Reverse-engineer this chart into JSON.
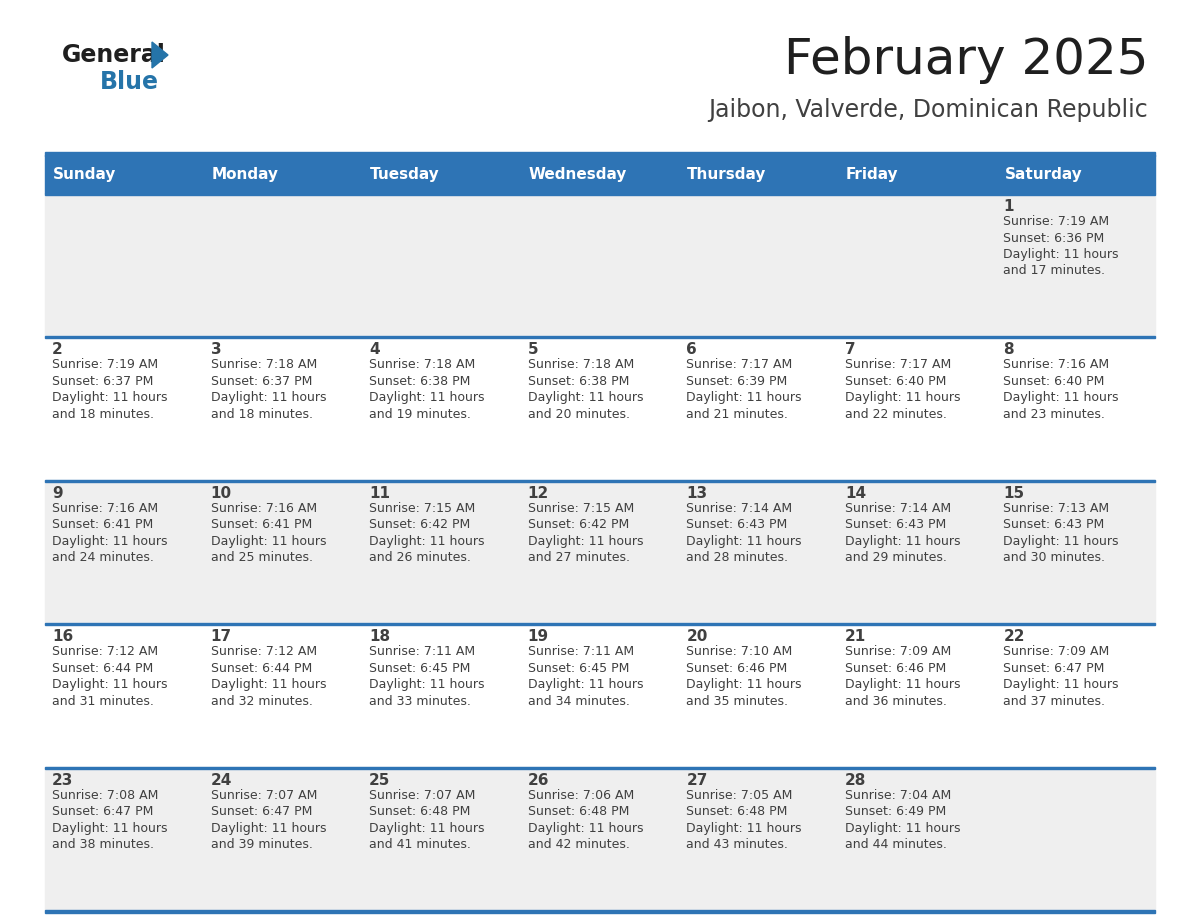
{
  "title": "February 2025",
  "subtitle": "Jaibon, Valverde, Dominican Republic",
  "days_of_week": [
    "Sunday",
    "Monday",
    "Tuesday",
    "Wednesday",
    "Thursday",
    "Friday",
    "Saturday"
  ],
  "header_bg": "#2E74B5",
  "header_text": "#FFFFFF",
  "cell_bg_white": "#FFFFFF",
  "cell_bg_gray": "#EFEFEF",
  "separator_color": "#2E74B5",
  "day_number_color": "#404040",
  "cell_text_color": "#404040",
  "title_color": "#1F1F1F",
  "subtitle_color": "#404040",
  "logo_general_color": "#1F1F1F",
  "logo_blue_color": "#2574A9",
  "weeks": [
    {
      "days": [
        {
          "day": null,
          "sunrise": null,
          "sunset": null,
          "daylight": null
        },
        {
          "day": null,
          "sunrise": null,
          "sunset": null,
          "daylight": null
        },
        {
          "day": null,
          "sunrise": null,
          "sunset": null,
          "daylight": null
        },
        {
          "day": null,
          "sunrise": null,
          "sunset": null,
          "daylight": null
        },
        {
          "day": null,
          "sunrise": null,
          "sunset": null,
          "daylight": null
        },
        {
          "day": null,
          "sunrise": null,
          "sunset": null,
          "daylight": null
        },
        {
          "day": 1,
          "sunrise": "7:19 AM",
          "sunset": "6:36 PM",
          "daylight": "11 hours and 17 minutes."
        }
      ]
    },
    {
      "days": [
        {
          "day": 2,
          "sunrise": "7:19 AM",
          "sunset": "6:37 PM",
          "daylight": "11 hours and 18 minutes."
        },
        {
          "day": 3,
          "sunrise": "7:18 AM",
          "sunset": "6:37 PM",
          "daylight": "11 hours and 18 minutes."
        },
        {
          "day": 4,
          "sunrise": "7:18 AM",
          "sunset": "6:38 PM",
          "daylight": "11 hours and 19 minutes."
        },
        {
          "day": 5,
          "sunrise": "7:18 AM",
          "sunset": "6:38 PM",
          "daylight": "11 hours and 20 minutes."
        },
        {
          "day": 6,
          "sunrise": "7:17 AM",
          "sunset": "6:39 PM",
          "daylight": "11 hours and 21 minutes."
        },
        {
          "day": 7,
          "sunrise": "7:17 AM",
          "sunset": "6:40 PM",
          "daylight": "11 hours and 22 minutes."
        },
        {
          "day": 8,
          "sunrise": "7:16 AM",
          "sunset": "6:40 PM",
          "daylight": "11 hours and 23 minutes."
        }
      ]
    },
    {
      "days": [
        {
          "day": 9,
          "sunrise": "7:16 AM",
          "sunset": "6:41 PM",
          "daylight": "11 hours and 24 minutes."
        },
        {
          "day": 10,
          "sunrise": "7:16 AM",
          "sunset": "6:41 PM",
          "daylight": "11 hours and 25 minutes."
        },
        {
          "day": 11,
          "sunrise": "7:15 AM",
          "sunset": "6:42 PM",
          "daylight": "11 hours and 26 minutes."
        },
        {
          "day": 12,
          "sunrise": "7:15 AM",
          "sunset": "6:42 PM",
          "daylight": "11 hours and 27 minutes."
        },
        {
          "day": 13,
          "sunrise": "7:14 AM",
          "sunset": "6:43 PM",
          "daylight": "11 hours and 28 minutes."
        },
        {
          "day": 14,
          "sunrise": "7:14 AM",
          "sunset": "6:43 PM",
          "daylight": "11 hours and 29 minutes."
        },
        {
          "day": 15,
          "sunrise": "7:13 AM",
          "sunset": "6:43 PM",
          "daylight": "11 hours and 30 minutes."
        }
      ]
    },
    {
      "days": [
        {
          "day": 16,
          "sunrise": "7:12 AM",
          "sunset": "6:44 PM",
          "daylight": "11 hours and 31 minutes."
        },
        {
          "day": 17,
          "sunrise": "7:12 AM",
          "sunset": "6:44 PM",
          "daylight": "11 hours and 32 minutes."
        },
        {
          "day": 18,
          "sunrise": "7:11 AM",
          "sunset": "6:45 PM",
          "daylight": "11 hours and 33 minutes."
        },
        {
          "day": 19,
          "sunrise": "7:11 AM",
          "sunset": "6:45 PM",
          "daylight": "11 hours and 34 minutes."
        },
        {
          "day": 20,
          "sunrise": "7:10 AM",
          "sunset": "6:46 PM",
          "daylight": "11 hours and 35 minutes."
        },
        {
          "day": 21,
          "sunrise": "7:09 AM",
          "sunset": "6:46 PM",
          "daylight": "11 hours and 36 minutes."
        },
        {
          "day": 22,
          "sunrise": "7:09 AM",
          "sunset": "6:47 PM",
          "daylight": "11 hours and 37 minutes."
        }
      ]
    },
    {
      "days": [
        {
          "day": 23,
          "sunrise": "7:08 AM",
          "sunset": "6:47 PM",
          "daylight": "11 hours and 38 minutes."
        },
        {
          "day": 24,
          "sunrise": "7:07 AM",
          "sunset": "6:47 PM",
          "daylight": "11 hours and 39 minutes."
        },
        {
          "day": 25,
          "sunrise": "7:07 AM",
          "sunset": "6:48 PM",
          "daylight": "11 hours and 41 minutes."
        },
        {
          "day": 26,
          "sunrise": "7:06 AM",
          "sunset": "6:48 PM",
          "daylight": "11 hours and 42 minutes."
        },
        {
          "day": 27,
          "sunrise": "7:05 AM",
          "sunset": "6:48 PM",
          "daylight": "11 hours and 43 minutes."
        },
        {
          "day": 28,
          "sunrise": "7:04 AM",
          "sunset": "6:49 PM",
          "daylight": "11 hours and 44 minutes."
        },
        {
          "day": null,
          "sunrise": null,
          "sunset": null,
          "daylight": null
        }
      ]
    }
  ]
}
